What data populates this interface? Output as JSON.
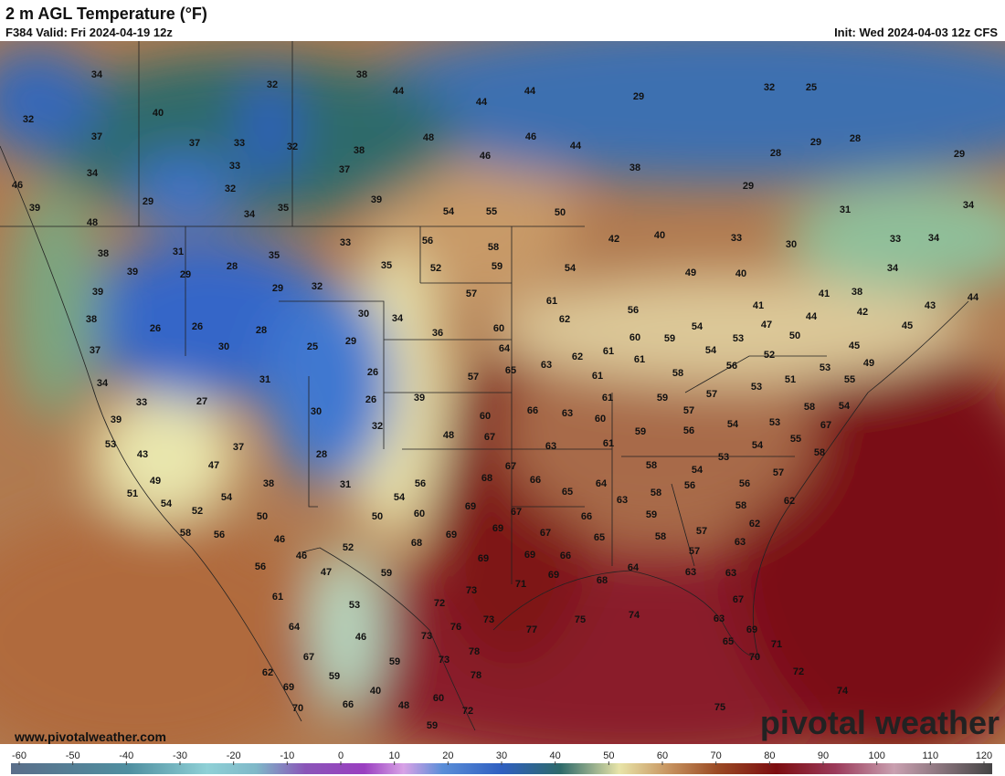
{
  "header": {
    "title": "2 m AGL Temperature (°F)",
    "valid": "F384 Valid: Fri 2024-04-19 12z",
    "init": "Init: Wed 2024-04-03 12z CFS"
  },
  "map": {
    "station_values": [
      34,
      38,
      32,
      44,
      44,
      44,
      29,
      32,
      25,
      40,
      32,
      37,
      37,
      33,
      32,
      38,
      48,
      46,
      44,
      29,
      28,
      28,
      29,
      33,
      37,
      46,
      38,
      34,
      46,
      32,
      39,
      29,
      29,
      34,
      31,
      39,
      34,
      35,
      54,
      55,
      50,
      48,
      40,
      42,
      33,
      33,
      34,
      30,
      38,
      31,
      56,
      58,
      33,
      35,
      39,
      29,
      28,
      35,
      52,
      59,
      54,
      49,
      40,
      34,
      39,
      29,
      32,
      57,
      61,
      41,
      38,
      43,
      44,
      38,
      26,
      26,
      28,
      30,
      34,
      62,
      56,
      41,
      44,
      42,
      45,
      37,
      30,
      25,
      29,
      36,
      60,
      60,
      59,
      54,
      53,
      47,
      50,
      64,
      61,
      54,
      52,
      45,
      26,
      57,
      65,
      63,
      62,
      61,
      56,
      49,
      53,
      34,
      31,
      61,
      58,
      51,
      53,
      55,
      33,
      27,
      26,
      39,
      66,
      63,
      61,
      59,
      57,
      58,
      54,
      39,
      30,
      60,
      60,
      57,
      56,
      54,
      53,
      67,
      53,
      32,
      48,
      67,
      63,
      59,
      61,
      54,
      55,
      58,
      37,
      28,
      43,
      47,
      53,
      58,
      54,
      57,
      49,
      38,
      31,
      56,
      68,
      67,
      66,
      64,
      56,
      51,
      54,
      54,
      65,
      63,
      58,
      56,
      58,
      62,
      54,
      52,
      50,
      69,
      67,
      60,
      50,
      66,
      59,
      62,
      58,
      56,
      46,
      69,
      69,
      67,
      65,
      58,
      57,
      63,
      52,
      68,
      46,
      69,
      69,
      66,
      57,
      56,
      47,
      59,
      71,
      69,
      68,
      64,
      63,
      63,
      61,
      73,
      72,
      53,
      67,
      64,
      76,
      73,
      77,
      75,
      74,
      63,
      69,
      46,
      73,
      65,
      71,
      67,
      78,
      59,
      73,
      70,
      62,
      59,
      78,
      72,
      69,
      40,
      60,
      74,
      70,
      66,
      48,
      72,
      75,
      59
    ],
    "website": "www.pivotalweather.com",
    "brand": "pivotal weather"
  },
  "colorbar": {
    "range": [
      -60,
      120
    ],
    "ticks": [
      -60,
      -50,
      -40,
      -30,
      -20,
      -10,
      0,
      10,
      20,
      30,
      40,
      50,
      60,
      70,
      80,
      90,
      100,
      110,
      120
    ]
  }
}
